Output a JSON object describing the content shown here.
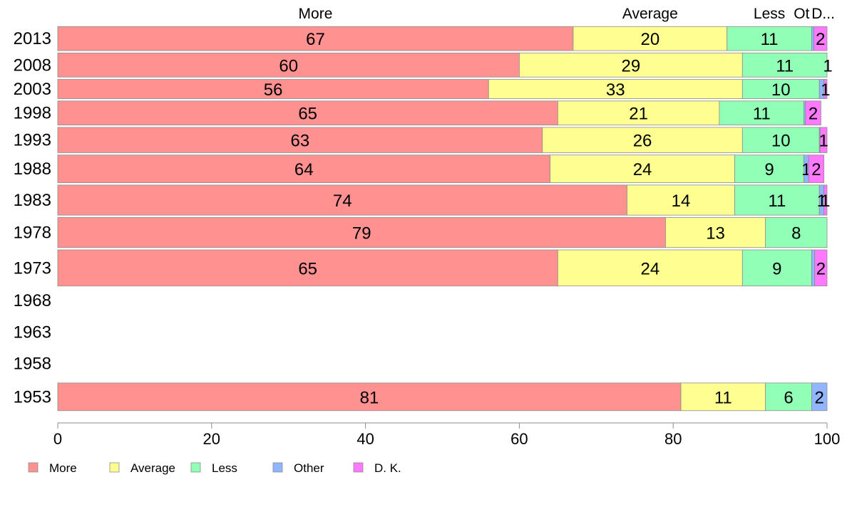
{
  "chart_data": {
    "type": "bar",
    "orientation": "horizontal",
    "stacked": true,
    "categories": [
      "2013",
      "2008",
      "2003",
      "1998",
      "1993",
      "1988",
      "1983",
      "1978",
      "1973",
      "1968",
      "1963",
      "1958",
      "1953"
    ],
    "series": [
      {
        "name": "More",
        "color": "#ff9191",
        "values": [
          67,
          60,
          56,
          65,
          63,
          64,
          74,
          79,
          65,
          null,
          null,
          null,
          81
        ]
      },
      {
        "name": "Average",
        "color": "#ffff91",
        "values": [
          20,
          29,
          33,
          21,
          26,
          24,
          14,
          13,
          24,
          null,
          null,
          null,
          11
        ]
      },
      {
        "name": "Less",
        "color": "#91ffb6",
        "values": [
          11,
          11,
          10,
          11,
          10,
          9,
          11,
          8,
          9,
          null,
          null,
          null,
          6
        ]
      },
      {
        "name": "Other",
        "color": "#91b6ff",
        "values": [
          0.3,
          0.2,
          0.6,
          0.2,
          0.1,
          0.6,
          0.6,
          0.3,
          0.4,
          null,
          null,
          null,
          2
        ]
      },
      {
        "name": "D. K.",
        "color": "#ff79ff",
        "values": [
          2,
          1,
          1,
          2,
          1,
          2,
          1,
          0,
          2,
          null,
          null,
          null,
          0.3
        ]
      }
    ],
    "segment_labels": [
      [
        "67",
        "20",
        "11",
        "",
        "2"
      ],
      [
        "60",
        "29",
        "11",
        "",
        "1"
      ],
      [
        "56",
        "33",
        "10",
        "",
        "1"
      ],
      [
        "65",
        "21",
        "11",
        "",
        "2"
      ],
      [
        "63",
        "26",
        "10",
        "",
        "1"
      ],
      [
        "64",
        "24",
        "9",
        "1",
        "2"
      ],
      [
        "74",
        "14",
        "11",
        "1",
        "1"
      ],
      [
        "79",
        "13",
        "8",
        "",
        ""
      ],
      [
        "65",
        "24",
        "9",
        "",
        "2"
      ],
      [],
      [],
      [],
      [
        "81",
        "11",
        "6",
        "2",
        ""
      ]
    ],
    "bar_weights": [
      1,
      1,
      0.8,
      1,
      1.05,
      1.15,
      1.25,
      1.25,
      1.5,
      0,
      0,
      0,
      1.15
    ],
    "top_labels": [
      "More",
      "Average",
      "Less",
      "Ot",
      "D..."
    ],
    "xlim": [
      0,
      100
    ],
    "xticks": [
      0,
      20,
      40,
      60,
      80,
      100
    ],
    "legend": [
      "More",
      "Average",
      "Less",
      "Other",
      "D. K."
    ],
    "legend_position": "bottom-left",
    "grid": false
  }
}
